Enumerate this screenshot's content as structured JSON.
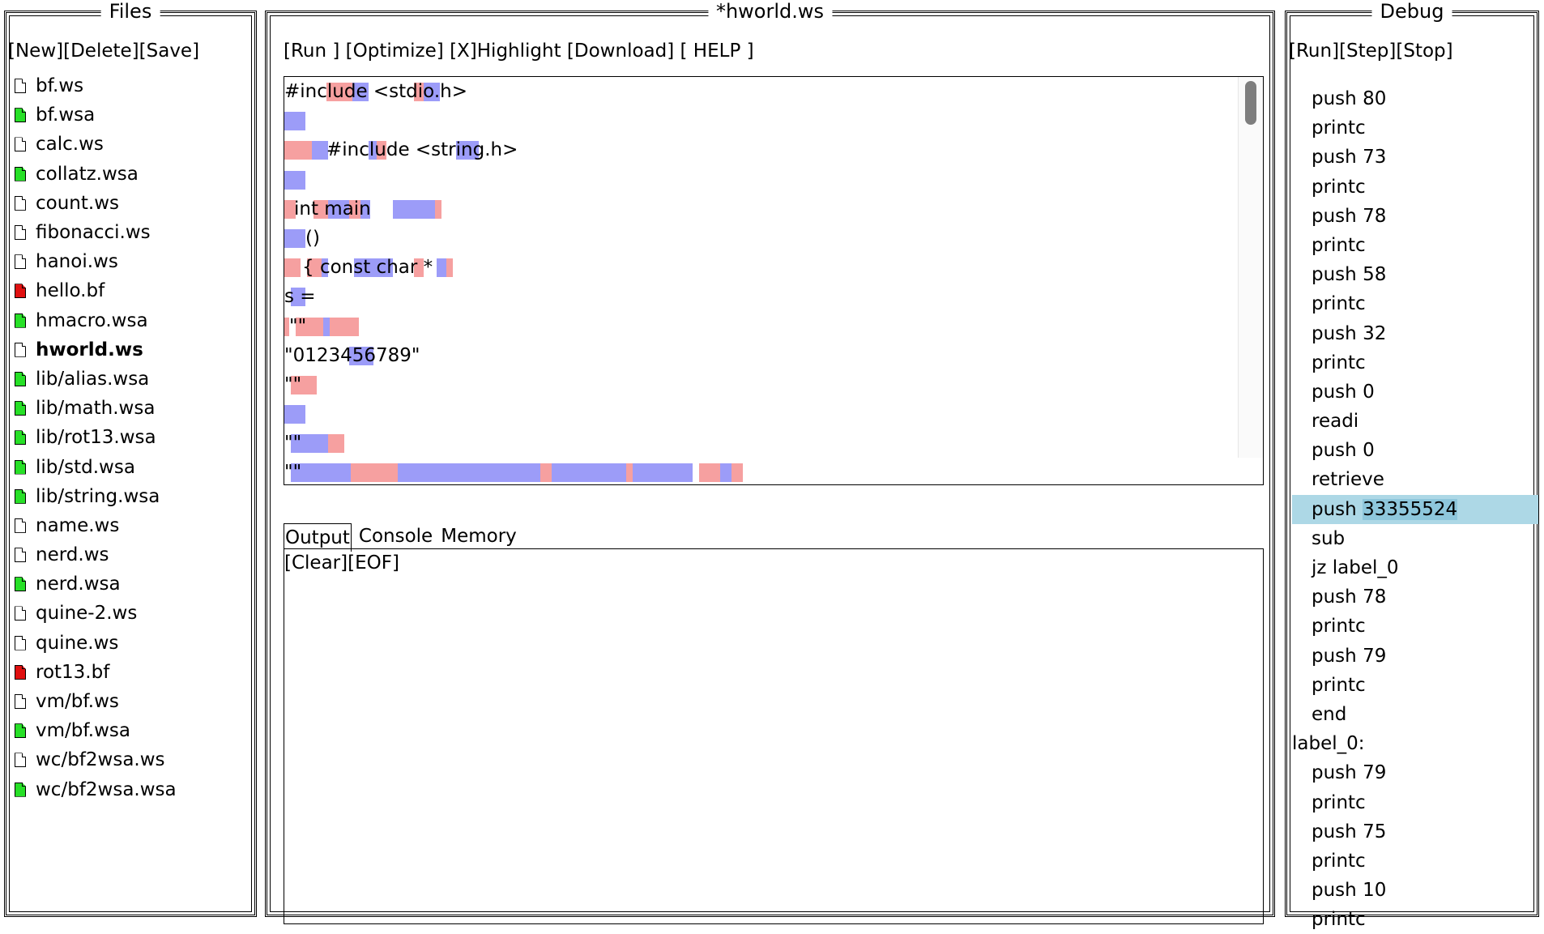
{
  "files_panel": {
    "title": "Files",
    "toolbar": [
      "[New]",
      "[Delete]",
      "[Save]"
    ],
    "files": [
      {
        "name": "bf.ws",
        "icon": "document-icon",
        "color": "#ffffff"
      },
      {
        "name": "bf.wsa",
        "icon": "document-icon",
        "color": "#27e027"
      },
      {
        "name": "calc.ws",
        "icon": "document-icon",
        "color": "#ffffff"
      },
      {
        "name": "collatz.wsa",
        "icon": "document-icon",
        "color": "#27e027"
      },
      {
        "name": "count.ws",
        "icon": "document-icon",
        "color": "#ffffff"
      },
      {
        "name": "fibonacci.ws",
        "icon": "document-icon",
        "color": "#ffffff"
      },
      {
        "name": "hanoi.ws",
        "icon": "document-icon",
        "color": "#ffffff"
      },
      {
        "name": "hello.bf",
        "icon": "document-icon",
        "color": "#e01010"
      },
      {
        "name": "hmacro.wsa",
        "icon": "document-icon",
        "color": "#27e027"
      },
      {
        "name": "hworld.ws",
        "icon": "document-icon",
        "color": "#ffffff",
        "selected": true
      },
      {
        "name": "lib/alias.wsa",
        "icon": "document-icon",
        "color": "#27e027"
      },
      {
        "name": "lib/math.wsa",
        "icon": "document-icon",
        "color": "#27e027"
      },
      {
        "name": "lib/rot13.wsa",
        "icon": "document-icon",
        "color": "#27e027"
      },
      {
        "name": "lib/std.wsa",
        "icon": "document-icon",
        "color": "#27e027"
      },
      {
        "name": "lib/string.wsa",
        "icon": "document-icon",
        "color": "#27e027"
      },
      {
        "name": "name.ws",
        "icon": "document-icon",
        "color": "#ffffff"
      },
      {
        "name": "nerd.ws",
        "icon": "document-icon",
        "color": "#ffffff"
      },
      {
        "name": "nerd.wsa",
        "icon": "document-icon",
        "color": "#27e027"
      },
      {
        "name": "quine-2.ws",
        "icon": "document-icon",
        "color": "#ffffff"
      },
      {
        "name": "quine.ws",
        "icon": "document-icon",
        "color": "#ffffff"
      },
      {
        "name": "rot13.bf",
        "icon": "document-icon",
        "color": "#e01010"
      },
      {
        "name": "vm/bf.ws",
        "icon": "document-icon",
        "color": "#ffffff"
      },
      {
        "name": "vm/bf.wsa",
        "icon": "document-icon",
        "color": "#27e027"
      },
      {
        "name": "wc/bf2wsa.ws",
        "icon": "document-icon",
        "color": "#ffffff"
      },
      {
        "name": "wc/bf2wsa.wsa",
        "icon": "document-icon",
        "color": "#27e027"
      }
    ]
  },
  "editor_panel": {
    "title": "*hworld.ws",
    "toolbar": {
      "run": "[Run ]",
      "optimize": "[Optimize]",
      "highlight": "[X]Highlight",
      "download": "[Download]",
      "help": "[ HELP ]"
    },
    "code_lines": [
      "#include <stdio.h>",
      "",
      "#include <string.h>",
      "",
      "int main",
      "()",
      "{ const char *",
      "s =",
      "\"\"",
      "\"0123456789\"",
      "\"\"",
      "",
      "\"\"",
      "\"\""
    ],
    "highlight_colors": {
      "space": "#9c9cf8",
      "tab": "#f6a0a0"
    },
    "tabs": [
      "Output",
      "Console",
      "Memory"
    ],
    "active_tab": "Output",
    "output_toolbar": [
      "[Clear]",
      "[EOF]"
    ]
  },
  "debug_panel": {
    "title": "Debug",
    "toolbar": [
      "[Run]",
      "[Step]",
      "[Stop]"
    ],
    "instructions": [
      {
        "op": "push",
        "arg": "80"
      },
      {
        "op": "printc",
        "arg": ""
      },
      {
        "op": "push",
        "arg": "73"
      },
      {
        "op": "printc",
        "arg": ""
      },
      {
        "op": "push",
        "arg": "78"
      },
      {
        "op": "printc",
        "arg": ""
      },
      {
        "op": "push",
        "arg": "58"
      },
      {
        "op": "printc",
        "arg": ""
      },
      {
        "op": "push",
        "arg": "32"
      },
      {
        "op": "printc",
        "arg": ""
      },
      {
        "op": "push",
        "arg": "0"
      },
      {
        "op": "readi",
        "arg": ""
      },
      {
        "op": "push",
        "arg": "0"
      },
      {
        "op": "retrieve",
        "arg": ""
      },
      {
        "op": "push",
        "arg": "33355524",
        "current": true
      },
      {
        "op": "sub",
        "arg": ""
      },
      {
        "op": "jz",
        "arg": "label_0"
      },
      {
        "op": "push",
        "arg": "78"
      },
      {
        "op": "printc",
        "arg": ""
      },
      {
        "op": "push",
        "arg": "79"
      },
      {
        "op": "printc",
        "arg": ""
      },
      {
        "op": "end",
        "arg": ""
      },
      {
        "label": "label_0:"
      },
      {
        "op": "push",
        "arg": "79"
      },
      {
        "op": "printc",
        "arg": ""
      },
      {
        "op": "push",
        "arg": "75"
      },
      {
        "op": "printc",
        "arg": ""
      },
      {
        "op": "push",
        "arg": "10"
      },
      {
        "op": "printc",
        "arg": ""
      }
    ],
    "current_highlight_color": "#add8e6"
  }
}
